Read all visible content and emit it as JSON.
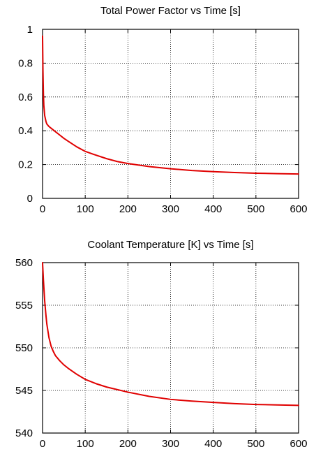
{
  "chart_data": [
    {
      "type": "line",
      "title": "Total Power Factor vs Time [s]",
      "xlabel": "",
      "ylabel": "",
      "xlim": [
        0,
        600
      ],
      "ylim": [
        0,
        1
      ],
      "xticks": [
        0,
        100,
        200,
        300,
        400,
        500,
        600
      ],
      "yticks": [
        0,
        0.2,
        0.4,
        0.6,
        0.8,
        1
      ],
      "ytick_labels": [
        "0",
        "0.2",
        "0.4",
        "0.6",
        "0.8",
        "1"
      ],
      "grid": true,
      "legend": "none",
      "series": [
        {
          "color": "#e00000",
          "x": [
            0,
            1,
            2,
            3,
            5,
            8,
            10,
            15,
            20,
            30,
            40,
            50,
            60,
            80,
            100,
            120,
            150,
            175,
            200,
            250,
            300,
            350,
            400,
            450,
            500,
            550,
            600
          ],
          "y": [
            0.96,
            0.75,
            0.62,
            0.55,
            0.49,
            0.455,
            0.44,
            0.425,
            0.415,
            0.395,
            0.375,
            0.355,
            0.338,
            0.305,
            0.278,
            0.26,
            0.235,
            0.218,
            0.206,
            0.188,
            0.175,
            0.165,
            0.158,
            0.153,
            0.149,
            0.146,
            0.144
          ]
        }
      ]
    },
    {
      "type": "line",
      "title": "Coolant Temperature [K] vs Time [s]",
      "xlabel": "",
      "ylabel": "",
      "xlim": [
        0,
        600
      ],
      "ylim": [
        540,
        560
      ],
      "xticks": [
        0,
        100,
        200,
        300,
        400,
        500,
        600
      ],
      "yticks": [
        540,
        545,
        550,
        555,
        560
      ],
      "ytick_labels": [
        "540",
        "545",
        "550",
        "555",
        "560"
      ],
      "grid": true,
      "legend": "none",
      "series": [
        {
          "color": "#e00000",
          "x": [
            0,
            2,
            5,
            8,
            10,
            15,
            20,
            25,
            30,
            40,
            50,
            60,
            80,
            100,
            125,
            150,
            200,
            250,
            300,
            350,
            400,
            450,
            500,
            550,
            600
          ],
          "y": [
            560,
            558,
            555.5,
            553.8,
            552.8,
            551.2,
            550.2,
            549.6,
            549.1,
            548.5,
            548.0,
            547.6,
            546.9,
            546.3,
            545.8,
            545.4,
            544.8,
            544.3,
            543.95,
            543.75,
            543.6,
            543.45,
            543.35,
            543.3,
            543.25
          ]
        }
      ]
    }
  ]
}
